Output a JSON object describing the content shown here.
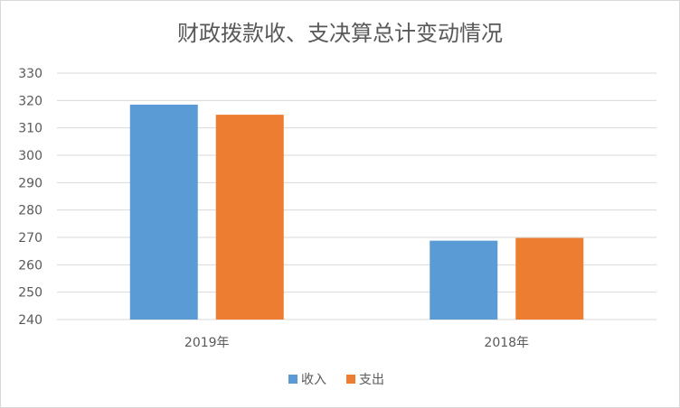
{
  "chart_data": {
    "type": "bar",
    "title": "财政拨款收、支决算总计变动情况",
    "categories": [
      "2019年",
      "2018年"
    ],
    "series": [
      {
        "name": "收入",
        "values": [
          318.5,
          268.8
        ],
        "color": "#5b9bd5"
      },
      {
        "name": "支出",
        "values": [
          314.8,
          269.8
        ],
        "color": "#ed7d31"
      }
    ],
    "ylim": [
      240,
      330
    ],
    "yticks": [
      240,
      250,
      260,
      270,
      280,
      290,
      300,
      310,
      320,
      330
    ],
    "grid": true,
    "legend": "bottom",
    "gridline_color": "#d9d9d9"
  }
}
